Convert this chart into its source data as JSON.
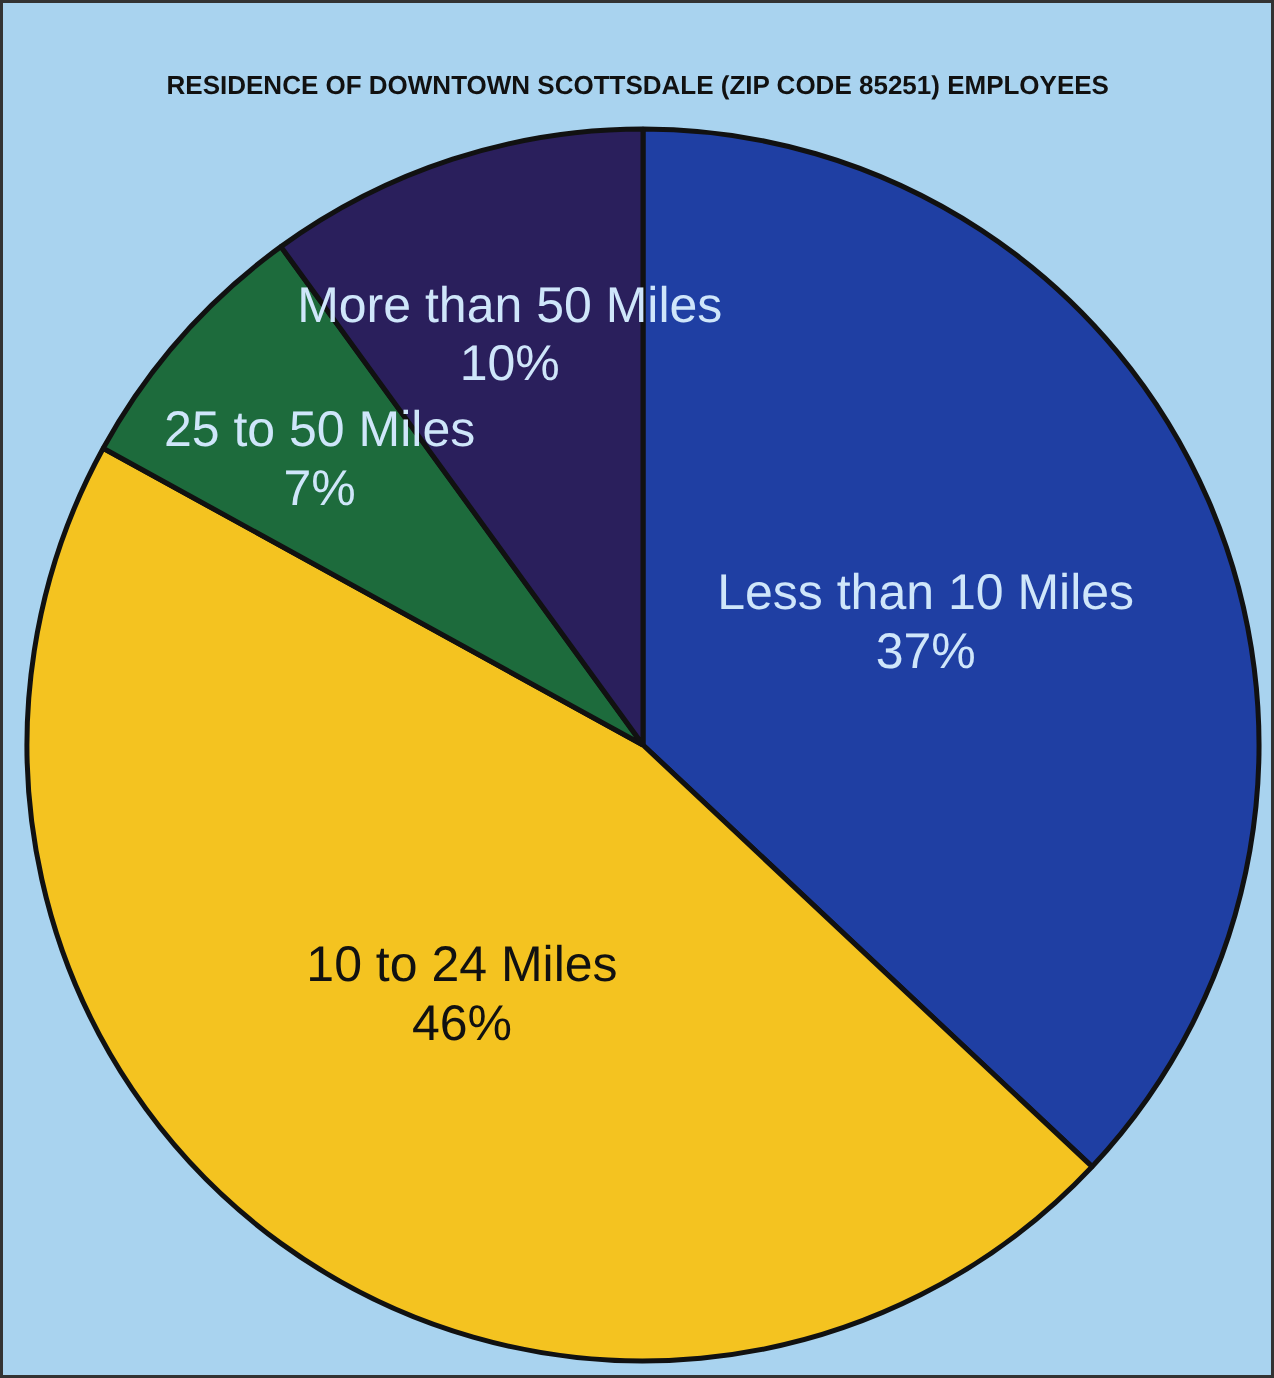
{
  "chart_data": {
    "type": "pie",
    "title": "RESIDENCE OF DOWNTOWN SCOTTSDALE (ZIP CODE 85251) EMPLOYEES",
    "categories": [
      "Less than 10 Miles",
      "10 to 24 Miles",
      "25 to 50 Miles",
      "More than 50 Miles"
    ],
    "values": [
      37,
      46,
      7,
      10
    ],
    "value_labels": [
      "37%",
      "46%",
      "7%",
      "10%"
    ],
    "colors": [
      "#1f3fa3",
      "#f4c320",
      "#1d6b3c",
      "#2a1f5c"
    ],
    "legend": false
  }
}
